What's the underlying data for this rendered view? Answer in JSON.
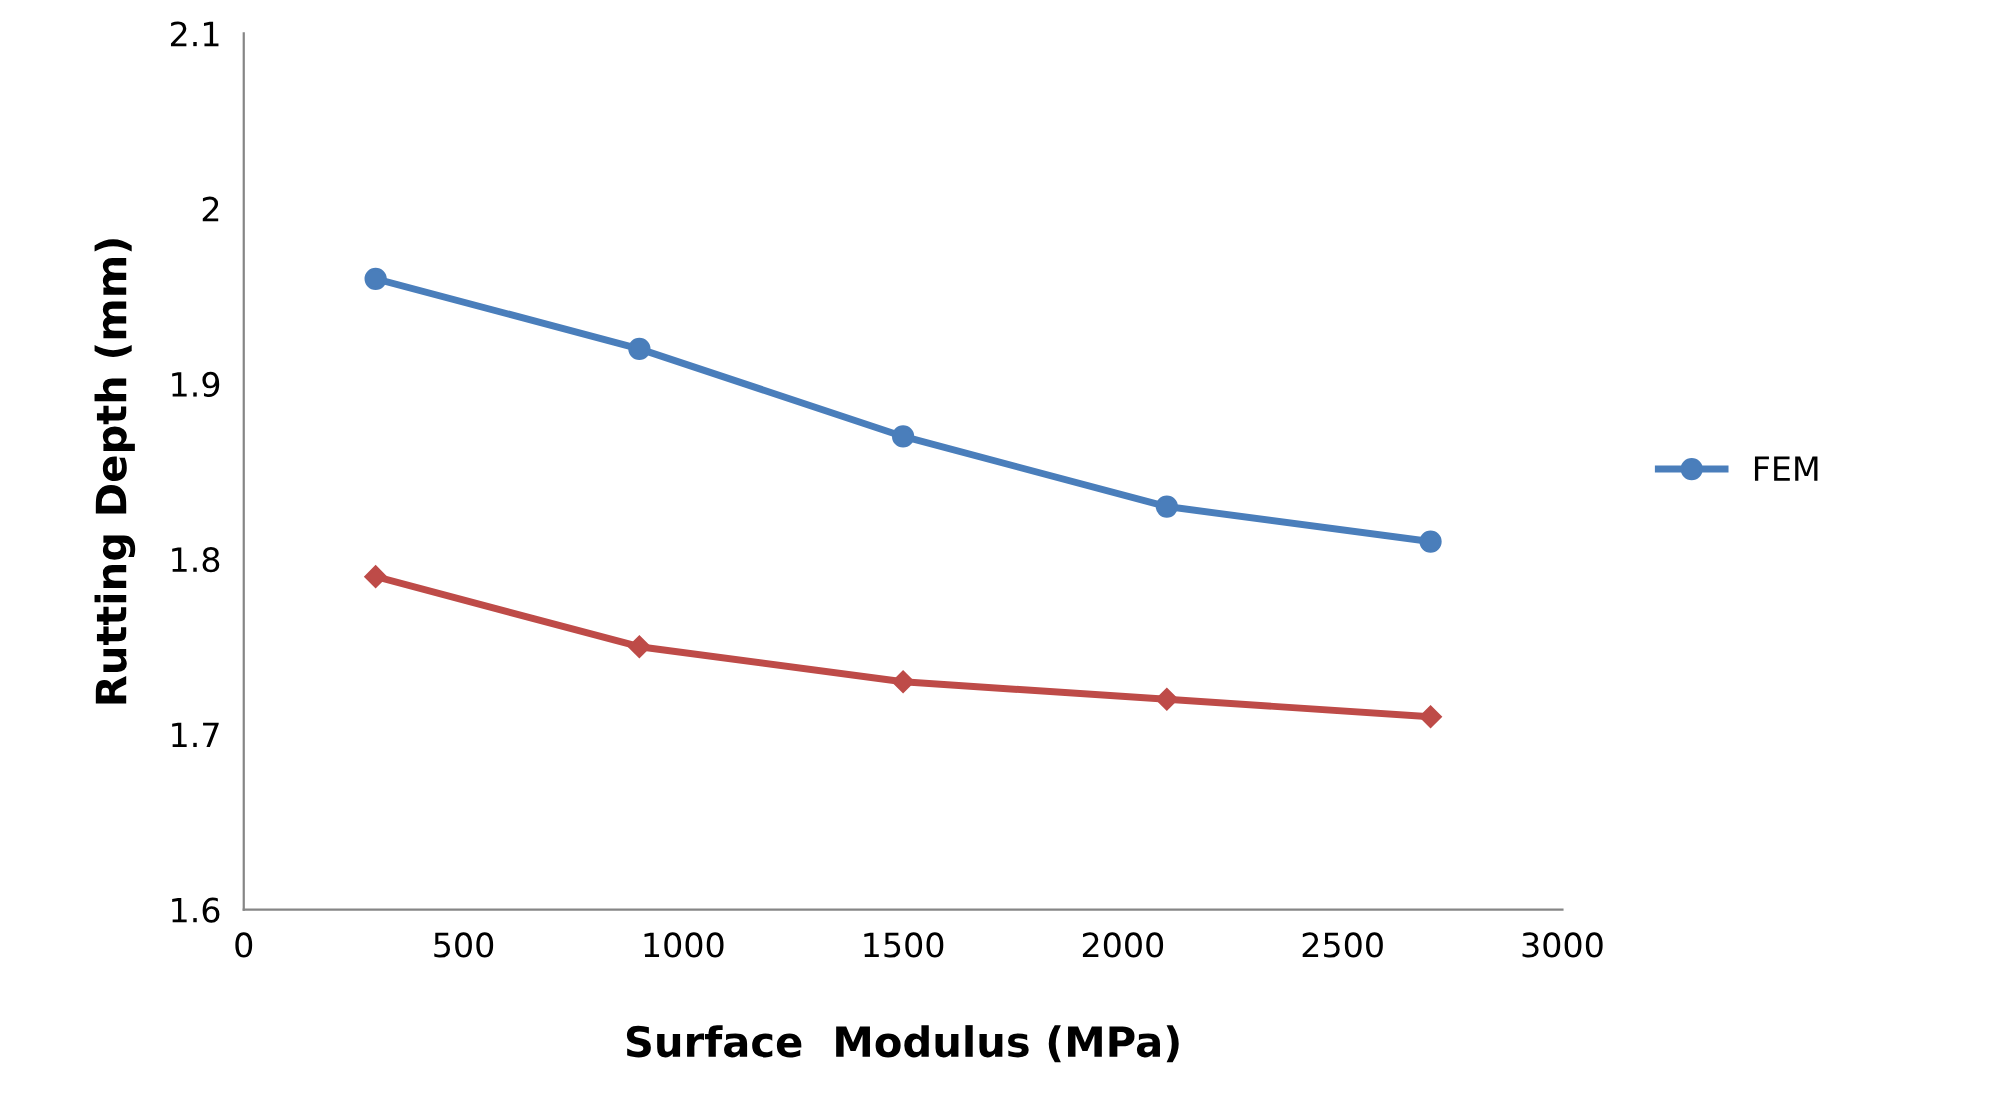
{
  "chart_data": {
    "type": "line",
    "xlabel": "Surface  Modulus (MPa)",
    "ylabel": "Rutting Depth (mm)",
    "x": [
      300,
      900,
      1500,
      2100,
      2700
    ],
    "series": [
      {
        "name": "FEM",
        "color": "#4a7ebb",
        "marker": "circle",
        "values": [
          1.96,
          1.92,
          1.87,
          1.83,
          1.81
        ]
      },
      {
        "color": "#be4b48",
        "marker": "diamond",
        "values": [
          1.79,
          1.75,
          1.73,
          1.72,
          1.71
        ]
      }
    ],
    "xlim": [
      0,
      3000
    ],
    "xticks": [
      0,
      500,
      1000,
      1500,
      2000,
      2500,
      3000
    ],
    "ylim": [
      1.6,
      2.1
    ],
    "yticks": [
      1.6,
      1.7,
      1.8,
      1.9,
      2,
      2.1
    ],
    "grid": false,
    "legend": "right",
    "line_style": "solid"
  }
}
